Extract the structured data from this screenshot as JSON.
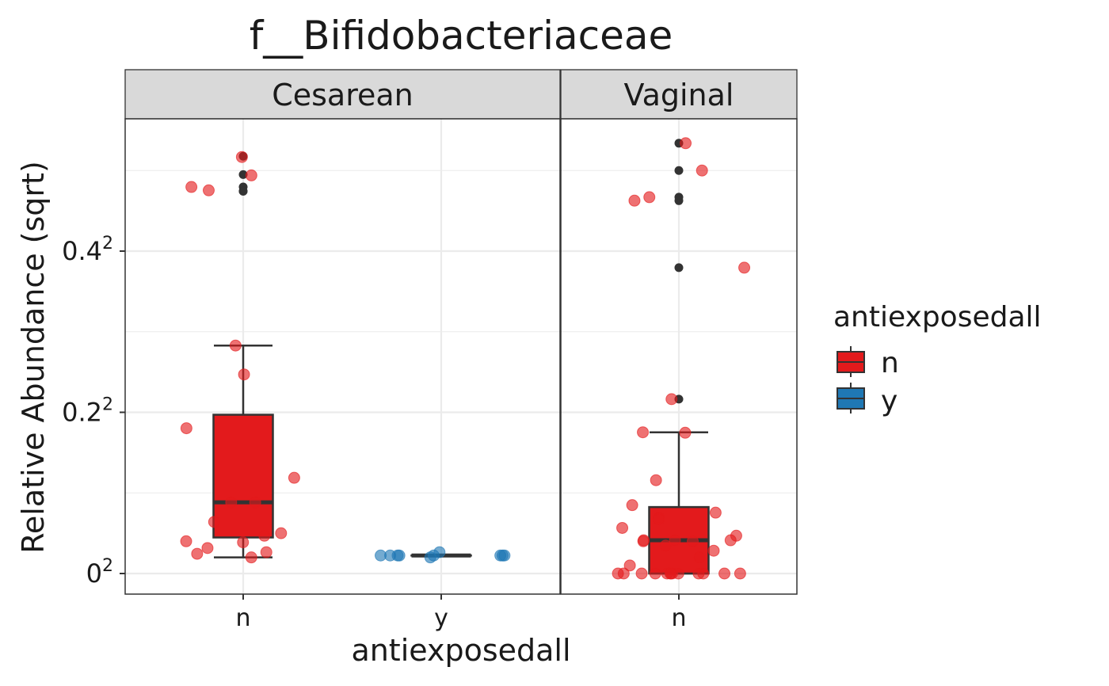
{
  "chart_data": {
    "type": "box",
    "title": "f__Bifidobacteriaceae",
    "xlabel": "antiexposedall",
    "ylabel": "Relative Abundance (sqrt)",
    "y_scale": "sqrt",
    "ylim": [
      0,
      0.3
    ],
    "y_ticks": [
      {
        "value": 0,
        "base": "0",
        "sup": "2"
      },
      {
        "value": 0.04,
        "base": "0.2",
        "sup": "2"
      },
      {
        "value": 0.16,
        "base": "0.4",
        "sup": "2"
      }
    ],
    "legend": {
      "title": "antiexposedall",
      "position": "right",
      "entries": [
        {
          "label": "n",
          "color": "#e31a1c"
        },
        {
          "label": "y",
          "color": "#1f78b4"
        }
      ]
    },
    "facets": [
      {
        "label": "Cesarean",
        "categories": [
          "n",
          "y"
        ],
        "boxes": [
          {
            "category": "n",
            "series": "n",
            "color": "#e31a1c",
            "min": 0.0004,
            "q1": 0.002,
            "median": 0.0078,
            "q3": 0.0388,
            "max": 0.08,
            "outliers": [
              0.268,
              0.245,
              0.23,
              0.225,
              0.225
            ]
          },
          {
            "category": "y",
            "series": "y",
            "color": "#1f78b4",
            "min": 0.0005,
            "q1": 0.0005,
            "median": 0.0005,
            "q3": 0.0005,
            "max": 0.0005,
            "outliers": []
          }
        ],
        "points": [
          {
            "category": "n",
            "series": "n",
            "values": [
              0.267,
              0.244,
              0.23,
              0.226,
              0.08,
              0.061,
              0.0325,
              0.0141,
              0.0078,
              0.0078,
              0.0041,
              0.0025,
              0.0022,
              0.0016,
              0.0015,
              0.001,
              0.0007,
              0.0006,
              0.0004
            ]
          },
          {
            "category": "y",
            "series": "y",
            "values": [
              0.0007,
              0.0005,
              0.0005,
              0.0005,
              0.0005,
              0.0005,
              0.0005,
              0.0005,
              0.0005,
              0.0004
            ]
          }
        ]
      },
      {
        "label": "Vaginal",
        "categories": [
          "n"
        ],
        "boxes": [
          {
            "category": "n",
            "series": "n",
            "color": "#e31a1c",
            "min": 0,
            "q1": 0,
            "median": 0.0017,
            "q3": 0.0068,
            "max": 0.0307,
            "outliers": [
              0.285,
              0.25,
              0.218,
              0.214,
              0.144,
              0.0468
            ]
          }
        ],
        "points": [
          {
            "category": "n",
            "series": "n",
            "values": [
              0.285,
              0.25,
              0.218,
              0.214,
              0.144,
              0.0468,
              0.0307,
              0.0305,
              0.0134,
              0.0072,
              0.0057,
              0.0048,
              0.0045,
              0.0032,
              0.0022,
              0.0017,
              0.0017,
              0.0017,
              0.0016,
              0.0016,
              0.0012,
              0.0008,
              0.0004,
              0.0001,
              0,
              0,
              0,
              0,
              0,
              0,
              0,
              0,
              0,
              0,
              0,
              0,
              0
            ]
          }
        ]
      }
    ]
  }
}
